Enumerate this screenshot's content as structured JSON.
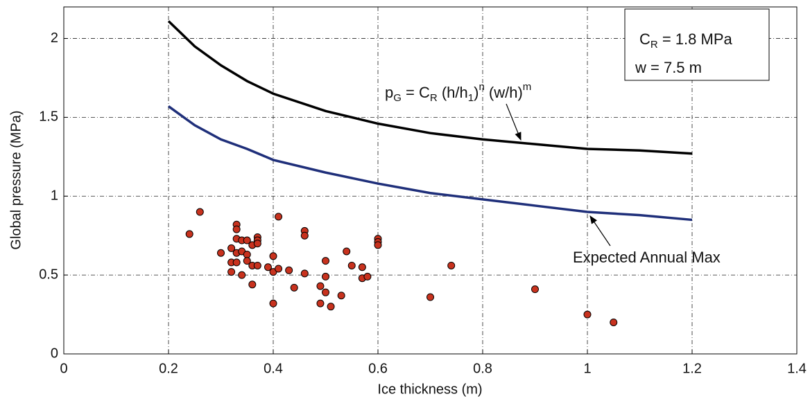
{
  "chart_data": {
    "type": "line",
    "xlabel": "Ice thickness (m)",
    "ylabel": "Global pressure (MPa)",
    "xlim": [
      0,
      1.4
    ],
    "ylim": [
      0,
      2.2
    ],
    "xticks": [
      0,
      0.2,
      0.4,
      0.6,
      0.8,
      1,
      1.2,
      1.4
    ],
    "yticks": [
      0,
      0.5,
      1,
      1.5,
      2
    ],
    "grid": true,
    "series": [
      {
        "type": "line",
        "color": "#000000",
        "x": [
          0.2,
          0.25,
          0.3,
          0.35,
          0.4,
          0.5,
          0.6,
          0.7,
          0.8,
          0.9,
          1.0,
          1.1,
          1.2
        ],
        "values": [
          2.11,
          1.95,
          1.83,
          1.73,
          1.65,
          1.54,
          1.46,
          1.4,
          1.36,
          1.33,
          1.3,
          1.29,
          1.27
        ]
      },
      {
        "type": "line",
        "color": "#1f2f7a",
        "x": [
          0.2,
          0.25,
          0.3,
          0.35,
          0.4,
          0.5,
          0.6,
          0.7,
          0.8,
          0.9,
          1.0,
          1.1,
          1.2
        ],
        "values": [
          1.57,
          1.45,
          1.36,
          1.3,
          1.23,
          1.15,
          1.08,
          1.02,
          0.98,
          0.94,
          0.9,
          0.88,
          0.85
        ]
      },
      {
        "type": "scatter",
        "color": "#c8321e",
        "x": [
          0.24,
          0.26,
          0.3,
          0.32,
          0.32,
          0.32,
          0.33,
          0.33,
          0.33,
          0.33,
          0.33,
          0.34,
          0.34,
          0.34,
          0.35,
          0.35,
          0.35,
          0.36,
          0.36,
          0.36,
          0.37,
          0.37,
          0.37,
          0.37,
          0.39,
          0.4,
          0.4,
          0.4,
          0.41,
          0.41,
          0.43,
          0.44,
          0.46,
          0.46,
          0.46,
          0.49,
          0.49,
          0.5,
          0.5,
          0.5,
          0.51,
          0.53,
          0.54,
          0.55,
          0.57,
          0.57,
          0.58,
          0.6,
          0.6,
          0.6,
          0.7,
          0.74,
          0.9,
          1.0,
          1.05
        ],
        "values": [
          0.76,
          0.9,
          0.64,
          0.67,
          0.58,
          0.52,
          0.82,
          0.79,
          0.73,
          0.64,
          0.58,
          0.72,
          0.65,
          0.5,
          0.72,
          0.63,
          0.59,
          0.69,
          0.56,
          0.44,
          0.74,
          0.72,
          0.7,
          0.56,
          0.55,
          0.62,
          0.52,
          0.32,
          0.87,
          0.54,
          0.53,
          0.42,
          0.78,
          0.75,
          0.51,
          0.43,
          0.32,
          0.59,
          0.49,
          0.39,
          0.3,
          0.37,
          0.65,
          0.56,
          0.55,
          0.48,
          0.49,
          0.73,
          0.71,
          0.69,
          0.36,
          0.56,
          0.41,
          0.25,
          0.2
        ]
      }
    ],
    "annotations": {
      "box_line1": [
        {
          "text": "C"
        },
        {
          "text": "R",
          "shift": "sub"
        },
        {
          "text": " = 1.8 MPa"
        }
      ],
      "box_line2": [
        {
          "text": " w  = 7.5 m"
        }
      ],
      "formula": [
        {
          "text": "p"
        },
        {
          "text": "G",
          "shift": "sub"
        },
        {
          "text": " = C"
        },
        {
          "text": "R",
          "shift": "sub"
        },
        {
          "text": " (h/h"
        },
        {
          "text": "1",
          "shift": "sub"
        },
        {
          "text": ")"
        },
        {
          "text": "n",
          "shift": "sup"
        },
        {
          "text": " (w/h)"
        },
        {
          "text": "m",
          "shift": "sup"
        }
      ],
      "expected": "Expected Annual Max"
    }
  }
}
